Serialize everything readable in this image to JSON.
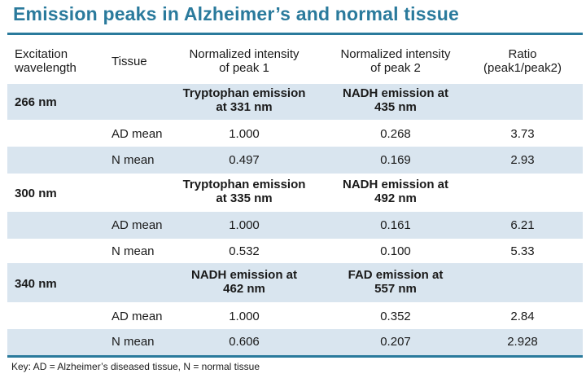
{
  "title": "Emission peaks in Alzheimer’s and normal tissue",
  "headers": {
    "excitation": [
      "Excitation",
      "wavelength"
    ],
    "tissue": "Tissue",
    "peak1": [
      "Normalized intensity",
      "of peak 1"
    ],
    "peak2": [
      "Normalized intensity",
      "of peak 2"
    ],
    "ratio": [
      "Ratio",
      "(peak1/peak2)"
    ]
  },
  "groups": [
    {
      "wavelength": "266 nm",
      "peak1_label": [
        "Tryptophan emission",
        "at 331 nm"
      ],
      "peak2_label": [
        "NADH emission at",
        "435 nm"
      ],
      "rows": [
        {
          "tissue": "AD mean",
          "peak1": "1.000",
          "peak2": "0.268",
          "ratio": "3.73"
        },
        {
          "tissue": "N mean",
          "peak1": "0.497",
          "peak2": "0.169",
          "ratio": "2.93"
        }
      ]
    },
    {
      "wavelength": "300 nm",
      "peak1_label": [
        "Tryptophan emission",
        "at 335 nm"
      ],
      "peak2_label": [
        "NADH emission at",
        "492 nm"
      ],
      "rows": [
        {
          "tissue": "AD mean",
          "peak1": "1.000",
          "peak2": "0.161",
          "ratio": "6.21"
        },
        {
          "tissue": "N mean",
          "peak1": "0.532",
          "peak2": "0.100",
          "ratio": "5.33"
        }
      ]
    },
    {
      "wavelength": "340 nm",
      "peak1_label": [
        "NADH emission at",
        "462 nm"
      ],
      "peak2_label": [
        "FAD emission at",
        "557 nm"
      ],
      "rows": [
        {
          "tissue": "AD mean",
          "peak1": "1.000",
          "peak2": "0.352",
          "ratio": "2.84"
        },
        {
          "tissue": "N mean",
          "peak1": "0.606",
          "peak2": "0.207",
          "ratio": "2.928"
        }
      ]
    }
  ],
  "key": "Key: AD = Alzheimer’s diseased tissue, N = normal tissue",
  "colors": {
    "accent": "#2a7a9c",
    "shade": "#d9e5ef"
  }
}
